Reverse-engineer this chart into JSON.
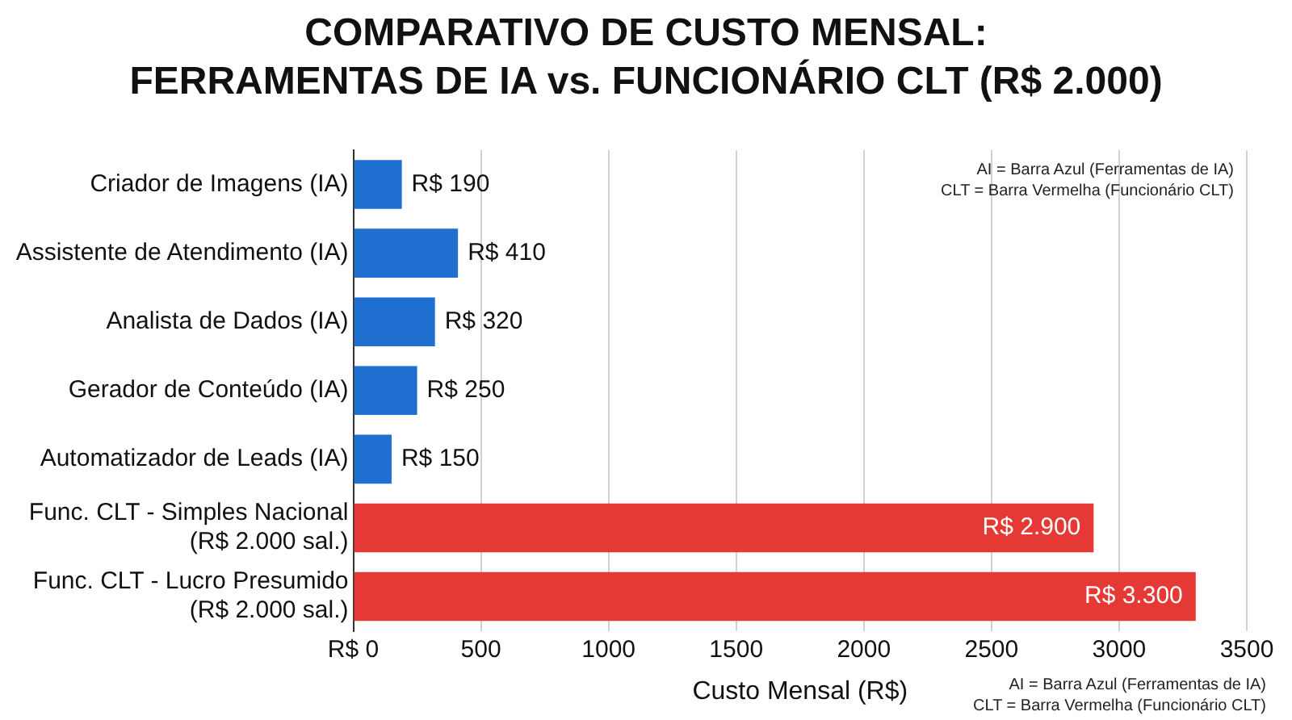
{
  "chart_data": {
    "type": "bar",
    "orientation": "horizontal",
    "title": "COMPARATIVO DE CUSTO MENSAL:\nFERRAMENTAS DE IA vs. FUNCIONÁRIO CLT (R$ 2.000)",
    "xlabel": "Custo Mensal (R$)",
    "categories": [
      "Criador de Imagens (IA)",
      "Assistente de Atendimento (IA)",
      "Analista de Dados (IA)",
      "Gerador de Conteúdo (IA)",
      "Automatizador de Leads (IA)",
      "Func. CLT - Simples Nacional\n(R$ 2.000 sal.)",
      "Func. CLT - Lucro Presumido\n(R$ 2.000 sal.)"
    ],
    "values": [
      190,
      410,
      320,
      250,
      150,
      2900,
      3300
    ],
    "colors": [
      "#1f6fd1",
      "#1f6fd1",
      "#1f6fd1",
      "#1f6fd1",
      "#1f6fd1",
      "#e53935",
      "#e53935"
    ],
    "value_labels": [
      "R$ 190",
      "R$ 410",
      "R$ 320",
      "R$ 250",
      "R$ 150",
      "R$ 2.900",
      "R$ 3.300"
    ],
    "xlim": [
      0,
      3500
    ],
    "xticks": [
      {
        "value": 0,
        "label": "R$ 0"
      },
      500,
      1000,
      1500,
      2000,
      2500,
      3000,
      3500
    ],
    "grid": "x",
    "annotations": [
      "AI = Barra Azul (Ferramentas de IA)",
      "CLT = Barra Vermelha (Funcionário CLT)",
      "AI = Barra Azul (Ferramentas de IA)",
      "CLT = Barra Vermelha (Funcionário CLT)"
    ]
  }
}
